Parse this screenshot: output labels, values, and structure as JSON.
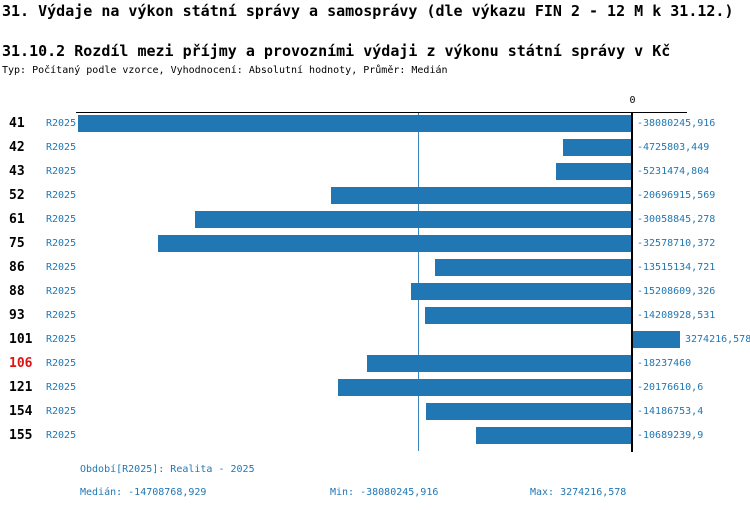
{
  "header": {
    "title": "31. Výdaje na výkon státní správy a samosprávy (dle výkazu FIN 2 - 12 M k 31.12.)",
    "subtitle": "31.10.2 Rozdíl mezi příjmy a provozními výdaji z výkonu státní správy v Kč",
    "meta": "Typ: Počítaný podle vzorce, Vyhodnocení: Absolutní hodnoty, Průměr: Medián"
  },
  "chart_data": {
    "type": "bar",
    "orientation": "horizontal",
    "unit": "Kč",
    "zero_label": "0",
    "series_label": "R2025",
    "categories": [
      "41",
      "42",
      "43",
      "52",
      "61",
      "75",
      "86",
      "88",
      "93",
      "101",
      "106",
      "121",
      "154",
      "155"
    ],
    "values": [
      -38080245.916,
      -4725803.449,
      -5231474.804,
      -20696915.569,
      -30058845.278,
      -32578710.372,
      -13515134.721,
      -15208609.326,
      -14208928.531,
      3274216.578,
      -18237460,
      -20176610.6,
      -14186753.4,
      -10689239.9
    ],
    "value_labels": [
      "-38080245,916",
      "-4725803,449",
      "-5231474,804",
      "-20696915,569",
      "-30058845,278",
      "-32578710,372",
      "-13515134,721",
      "-15208609,326",
      "-14208928,531",
      "3274216,578",
      "-18237460",
      "-20176610,6",
      "-14186753,4",
      "-10689239,9"
    ],
    "highlighted_category": "106",
    "xlim": [
      -38080245.916,
      3274216.578
    ],
    "median": -14708768.929,
    "grid": false,
    "legend": false,
    "bar_color": "#2077b4",
    "median_line_color": "#3a87bd",
    "highlight_color": "#e01212",
    "label_color": "#1f77b4"
  },
  "footer": {
    "period": "Období[R2025]: Realita - 2025",
    "median": "Medián: -14708768,929",
    "min": "Min: -38080245,916",
    "max": "Max: 3274216,578"
  }
}
